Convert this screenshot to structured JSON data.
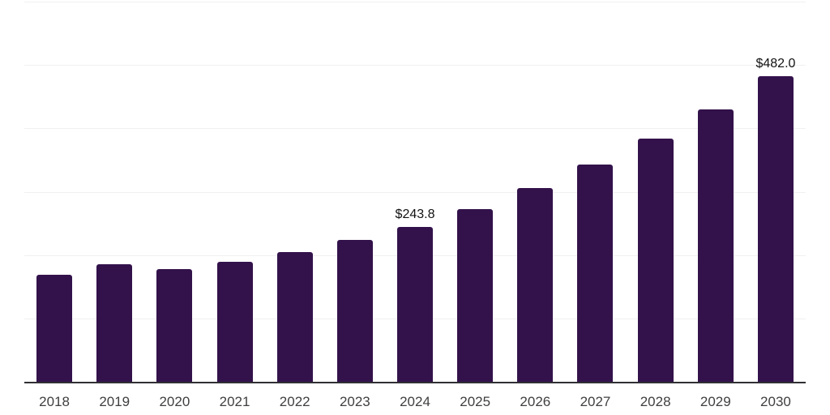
{
  "chart_data": {
    "type": "bar",
    "title": "",
    "xlabel": "",
    "ylabel": "",
    "ylim": [
      0,
      600
    ],
    "gridline_interval": 100,
    "grid": true,
    "legend": "none",
    "bar_color": "#33124B",
    "categories": [
      "2018",
      "2019",
      "2020",
      "2021",
      "2022",
      "2023",
      "2024",
      "2025",
      "2026",
      "2027",
      "2028",
      "2029",
      "2030"
    ],
    "values": [
      169.1,
      185.0,
      178.0,
      189.5,
      204.5,
      223.5,
      243.8,
      273.1,
      305.9,
      342.7,
      383.9,
      430.1,
      482.0
    ],
    "data_labels": [
      null,
      null,
      null,
      null,
      null,
      null,
      "$243.8",
      null,
      null,
      null,
      null,
      null,
      "$482.0"
    ]
  },
  "colors": {
    "background": "#ffffff",
    "bar": "#33124B",
    "gridline": "#f0f0f0",
    "axis_line": "#303034",
    "year_label": "#3f3f3f",
    "value_label": "#121212"
  }
}
